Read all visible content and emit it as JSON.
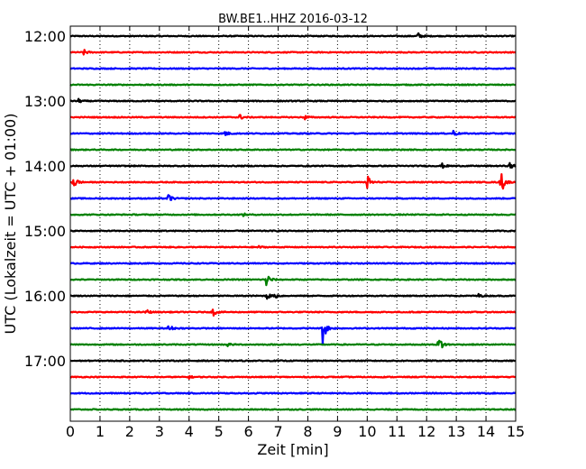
{
  "chart_data": {
    "type": "line",
    "title": "BW.BE1..HHZ 2016-03-12",
    "xlabel": "Zeit  [min]",
    "ylabel": "UTC (Lokalzeit = UTC + 01:00)",
    "xlim": [
      0,
      15
    ],
    "x_ticks": [
      "0",
      "1",
      "2",
      "3",
      "4",
      "5",
      "6",
      "7",
      "8",
      "9",
      "10",
      "11",
      "12",
      "13",
      "14",
      "15"
    ],
    "y_ticks": [
      "12:00",
      "13:00",
      "14:00",
      "15:00",
      "16:00",
      "17:00"
    ],
    "grid": "vertical dotted",
    "trace_colors": [
      "#000000",
      "#ff0000",
      "#0000ff",
      "#008000"
    ],
    "trace_interval_min": 15,
    "series": [
      {
        "start": "12:00",
        "events": [
          {
            "x": 11.7,
            "amp": 0.45
          }
        ]
      },
      {
        "start": "12:15",
        "events": [
          {
            "x": 0.45,
            "amp": 0.35
          }
        ]
      },
      {
        "start": "12:30",
        "events": []
      },
      {
        "start": "12:45",
        "events": []
      },
      {
        "start": "13:00",
        "events": [
          {
            "x": 0.25,
            "amp": 0.3
          }
        ]
      },
      {
        "start": "13:15",
        "events": [
          {
            "x": 5.7,
            "amp": 0.35
          },
          {
            "x": 7.9,
            "amp": 0.25
          }
        ]
      },
      {
        "start": "13:30",
        "events": [
          {
            "x": 5.2,
            "amp": 0.4
          },
          {
            "x": 12.9,
            "amp": 0.4
          }
        ]
      },
      {
        "start": "13:45",
        "events": []
      },
      {
        "start": "14:00",
        "events": [
          {
            "x": 12.5,
            "amp": 0.35
          },
          {
            "x": 14.8,
            "amp": 0.45
          }
        ]
      },
      {
        "start": "14:15",
        "events": [
          {
            "x": 0.1,
            "amp": 1.0
          },
          {
            "x": 10.0,
            "amp": 1.0
          },
          {
            "x": 14.5,
            "amp": 1.8
          }
        ]
      },
      {
        "start": "14:30",
        "events": [
          {
            "x": 3.3,
            "amp": 0.6
          }
        ]
      },
      {
        "start": "14:45",
        "events": [
          {
            "x": 5.8,
            "amp": 0.2
          }
        ]
      },
      {
        "start": "15:00",
        "events": []
      },
      {
        "start": "15:15",
        "events": [
          {
            "x": 6.3,
            "amp": 0.2
          }
        ]
      },
      {
        "start": "15:30",
        "events": []
      },
      {
        "start": "15:45",
        "events": [
          {
            "x": 6.6,
            "amp": 1.0
          }
        ]
      },
      {
        "start": "16:00",
        "events": [
          {
            "x": 6.6,
            "amp": 0.5
          },
          {
            "x": 6.9,
            "amp": 0.3
          },
          {
            "x": 13.7,
            "amp": 0.35
          }
        ]
      },
      {
        "start": "16:15",
        "events": [
          {
            "x": 2.55,
            "amp": 0.35
          },
          {
            "x": 4.8,
            "amp": 0.55
          }
        ]
      },
      {
        "start": "16:30",
        "events": [
          {
            "x": 3.3,
            "amp": 0.6
          },
          {
            "x": 8.5,
            "amp": 2.0
          }
        ]
      },
      {
        "start": "16:45",
        "events": [
          {
            "x": 5.3,
            "amp": 0.2
          },
          {
            "x": 12.4,
            "amp": 1.6
          }
        ]
      },
      {
        "start": "17:00",
        "events": []
      },
      {
        "start": "17:15",
        "events": [
          {
            "x": 4.0,
            "amp": 0.15
          }
        ]
      },
      {
        "start": "17:30",
        "events": []
      },
      {
        "start": "17:45",
        "events": []
      }
    ]
  }
}
